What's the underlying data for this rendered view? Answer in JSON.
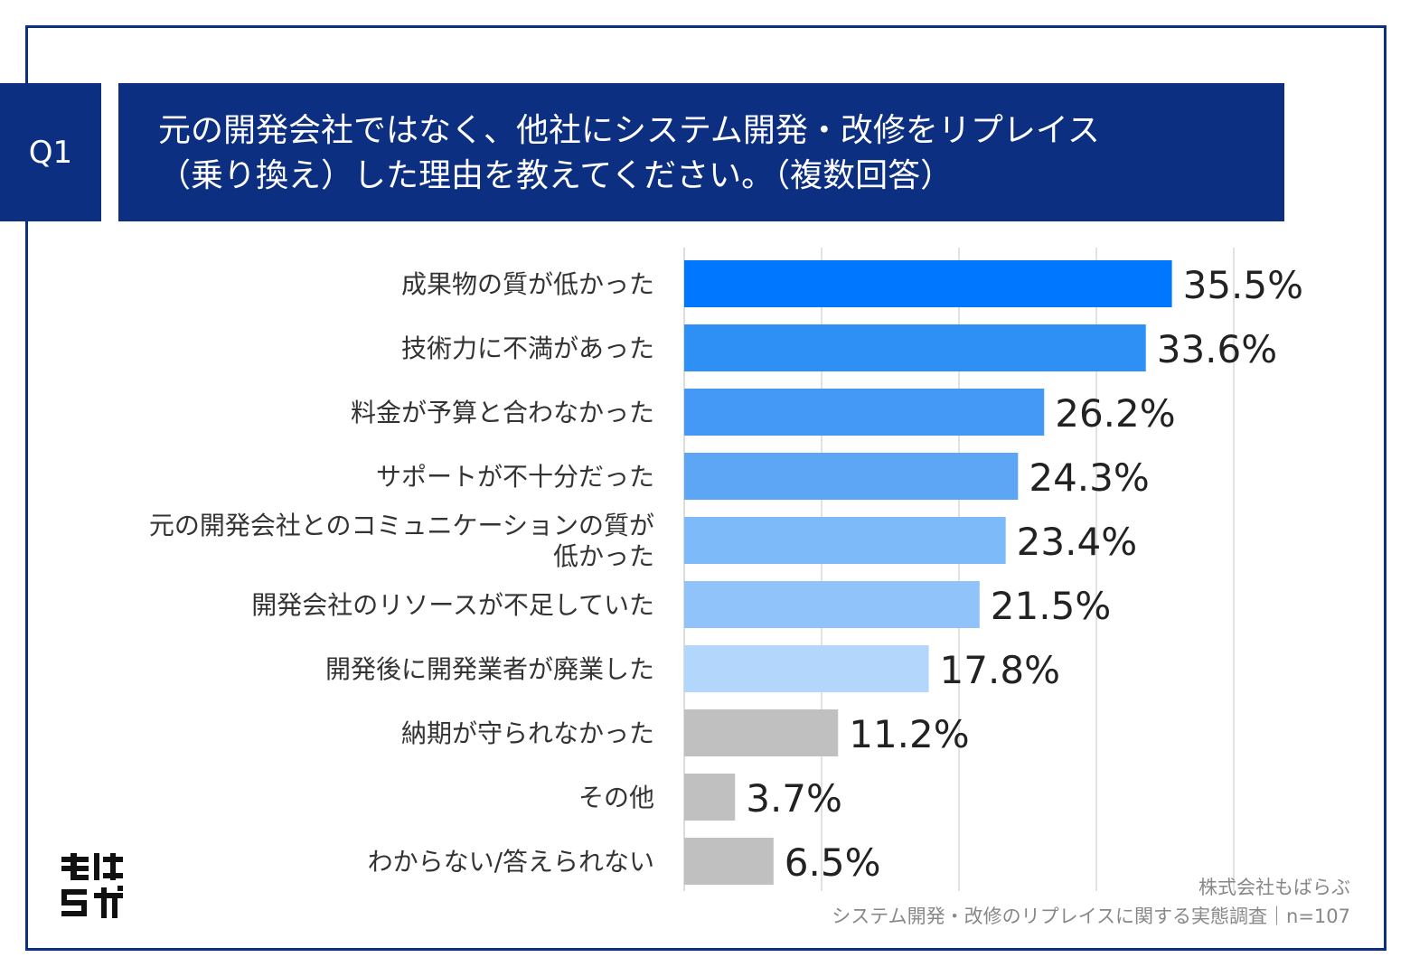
{
  "header": {
    "tag": "Q1",
    "title_line1": "元の開発会社ではなく、他社にシステム開発・改修をリプレイス",
    "title_line2": "（乗り換え）した理由を教えてください。（複数回答）"
  },
  "chart_data": {
    "type": "bar",
    "orientation": "horizontal",
    "categories": [
      "成果物の質が低かった",
      "技術力に不満があった",
      "料金が予算と合わなかった",
      "サポートが不十分だった",
      "元の開発会社とのコミュニケーションの質が低かった",
      "開発会社のリソースが不足していた",
      "開発後に開発業者が廃業した",
      "納期が守られなかった",
      "その他",
      "わからない/答えられない"
    ],
    "category_lines": [
      [
        "成果物の質が低かった"
      ],
      [
        "技術力に不満があった"
      ],
      [
        "料金が予算と合わなかった"
      ],
      [
        "サポートが不十分だった"
      ],
      [
        "元の開発会社とのコミュニケーションの質が",
        "低かった"
      ],
      [
        "開発会社のリソースが不足していた"
      ],
      [
        "開発後に開発業者が廃業した"
      ],
      [
        "納期が守られなかった"
      ],
      [
        "その他"
      ],
      [
        "わからない/答えられない"
      ]
    ],
    "values": [
      35.5,
      33.6,
      26.2,
      24.3,
      23.4,
      21.5,
      17.8,
      11.2,
      3.7,
      6.5
    ],
    "labels": [
      "35.5%",
      "33.6%",
      "26.2%",
      "24.3%",
      "23.4%",
      "21.5%",
      "17.8%",
      "11.2%",
      "3.7%",
      "6.5%"
    ],
    "colors": [
      "#0077ff",
      "#2e8ff5",
      "#4399f5",
      "#5ca6f5",
      "#7dbaf9",
      "#8fc3f9",
      "#b3d6fc",
      "#c0c0c0",
      "#c0c0c0",
      "#c0c0c0"
    ],
    "xlim": [
      0,
      40
    ],
    "grid": true
  },
  "footer": {
    "logo_text": "もばらぶ",
    "source_line1": "株式会社もばらぶ",
    "source_line2": "システム開発・改修のリプレイスに関する実態調査｜n=107"
  }
}
